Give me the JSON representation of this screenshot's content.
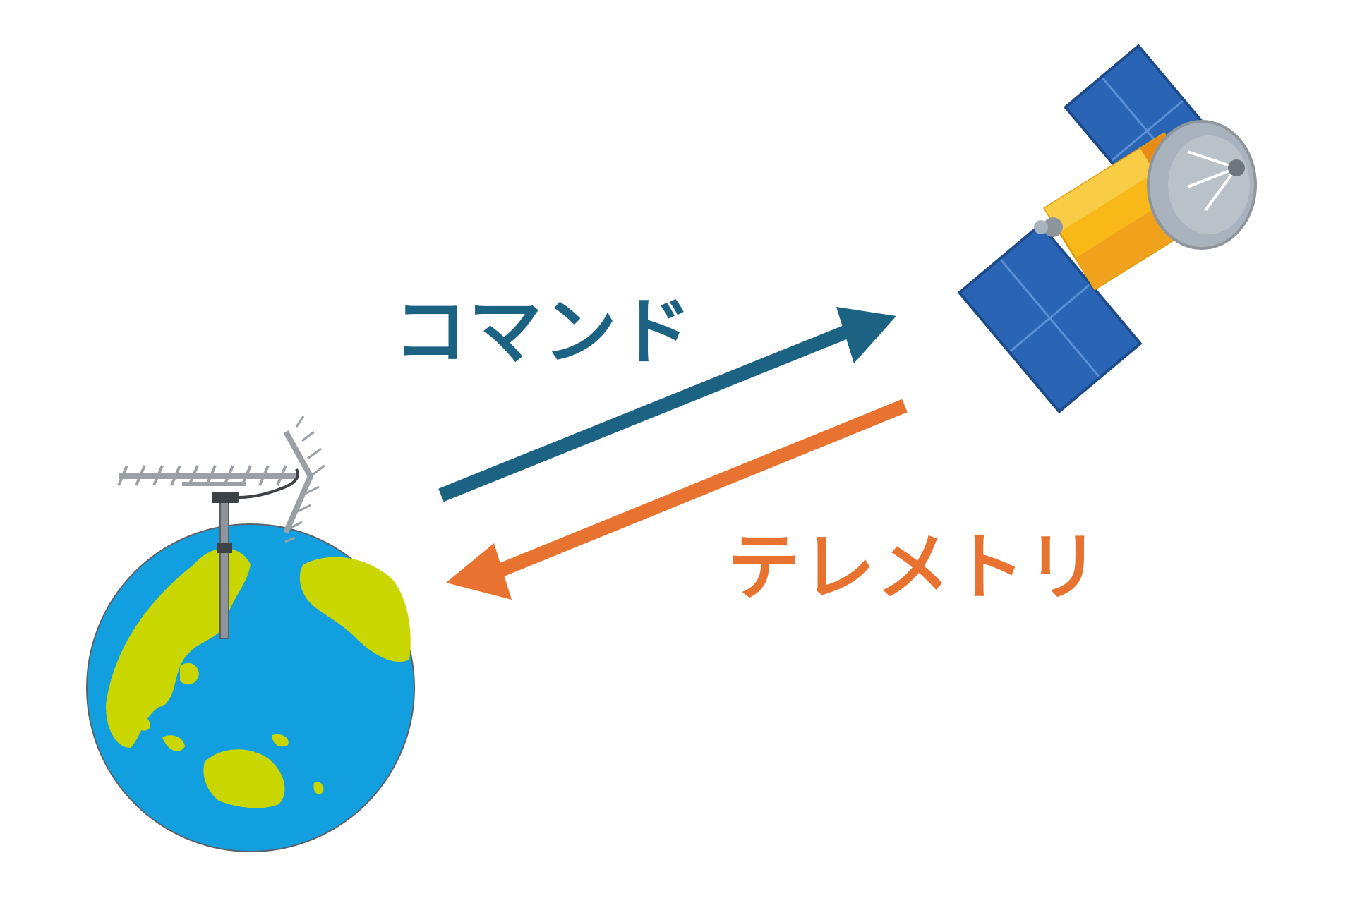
{
  "labels": {
    "command": "コマンド",
    "telemetry": "テレメトリ"
  },
  "colors": {
    "command": "#1b6283",
    "telemetry": "#e87330",
    "ocean": "#129fdf",
    "land": "#c9d600",
    "panel": "#2a64b4",
    "gold": "#f7b818",
    "dish": "#a9b3bd"
  },
  "icons": [
    "earth-icon",
    "antenna-icon",
    "satellite-icon"
  ]
}
